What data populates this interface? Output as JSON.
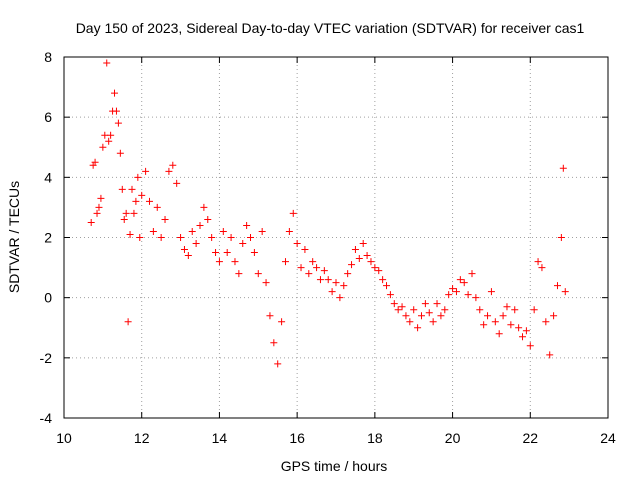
{
  "chart_data": {
    "type": "scatter",
    "title": "Day 150 of 2023, Sidereal Day-to-day VTEC variation (SDTVAR) for receiver cas1",
    "xlabel": "GPS time / hours",
    "ylabel": "SDTVAR / TECUs",
    "xlim": [
      10,
      24
    ],
    "ylim": [
      -4,
      8
    ],
    "x_ticks": [
      10,
      12,
      14,
      16,
      18,
      20,
      22,
      24
    ],
    "y_ticks": [
      -4,
      -2,
      0,
      2,
      4,
      6,
      8
    ],
    "x_tick_labels": [
      "10",
      "12",
      "14",
      "16",
      "18",
      "20",
      "22",
      "24"
    ],
    "y_tick_labels": [
      "-4",
      "-2",
      "0",
      "2",
      "4",
      "6",
      "8"
    ],
    "grid": true,
    "marker": "+",
    "series": [
      {
        "name": "SDTVAR",
        "color": "#ff0000",
        "x": [
          10.7,
          10.75,
          10.8,
          10.85,
          10.9,
          10.95,
          11.0,
          11.05,
          11.1,
          11.15,
          11.2,
          11.25,
          11.3,
          11.35,
          11.4,
          11.45,
          11.5,
          11.55,
          11.6,
          11.65,
          11.7,
          11.75,
          11.8,
          11.85,
          11.9,
          11.95,
          12.0,
          12.1,
          12.2,
          12.3,
          12.4,
          12.5,
          12.6,
          12.7,
          12.8,
          12.9,
          13.0,
          13.1,
          13.2,
          13.3,
          13.4,
          13.5,
          13.6,
          13.7,
          13.8,
          13.9,
          14.0,
          14.1,
          14.2,
          14.3,
          14.4,
          14.5,
          14.6,
          14.7,
          14.8,
          14.9,
          15.0,
          15.1,
          15.2,
          15.3,
          15.4,
          15.5,
          15.6,
          15.7,
          15.8,
          15.9,
          16.0,
          16.1,
          16.2,
          16.3,
          16.4,
          16.5,
          16.6,
          16.7,
          16.8,
          16.9,
          17.0,
          17.1,
          17.2,
          17.3,
          17.4,
          17.5,
          17.6,
          17.7,
          17.8,
          17.9,
          18.0,
          18.1,
          18.2,
          18.3,
          18.4,
          18.5,
          18.6,
          18.7,
          18.8,
          18.9,
          19.0,
          19.1,
          19.2,
          19.3,
          19.4,
          19.5,
          19.6,
          19.7,
          19.8,
          19.9,
          20.0,
          20.1,
          20.2,
          20.3,
          20.4,
          20.5,
          20.6,
          20.7,
          20.8,
          20.9,
          21.0,
          21.1,
          21.2,
          21.3,
          21.4,
          21.5,
          21.6,
          21.7,
          21.8,
          21.9,
          22.0,
          22.1,
          22.2,
          22.3,
          22.4,
          22.5,
          22.6,
          22.7,
          22.8,
          22.85,
          22.9
        ],
        "y": [
          2.5,
          4.4,
          4.5,
          2.8,
          3.0,
          3.3,
          5.0,
          5.4,
          7.8,
          5.2,
          5.4,
          6.2,
          6.8,
          6.2,
          5.8,
          4.8,
          3.6,
          2.6,
          2.8,
          -0.8,
          2.1,
          3.6,
          2.8,
          3.2,
          4.0,
          2.0,
          3.4,
          4.2,
          3.2,
          2.2,
          3.0,
          2.0,
          2.6,
          4.2,
          4.4,
          3.8,
          2.0,
          1.6,
          1.4,
          2.2,
          1.8,
          2.4,
          3.0,
          2.6,
          2.0,
          1.5,
          1.2,
          2.2,
          1.5,
          2.0,
          1.2,
          0.8,
          1.8,
          2.4,
          2.0,
          1.5,
          0.8,
          2.2,
          0.5,
          -0.6,
          -1.5,
          -2.2,
          -0.8,
          1.2,
          2.2,
          2.8,
          1.8,
          1.0,
          1.6,
          0.8,
          1.2,
          1.0,
          0.6,
          0.9,
          0.6,
          0.2,
          0.5,
          0.0,
          0.4,
          0.8,
          1.1,
          1.6,
          1.3,
          1.8,
          1.4,
          1.2,
          1.0,
          0.9,
          0.6,
          0.4,
          0.1,
          -0.2,
          -0.4,
          -0.3,
          -0.6,
          -0.8,
          -0.4,
          -1.0,
          -0.6,
          -0.2,
          -0.5,
          -0.8,
          -0.2,
          -0.6,
          -0.4,
          0.1,
          0.3,
          0.2,
          0.6,
          0.5,
          0.1,
          0.8,
          0.0,
          -0.4,
          -0.9,
          -0.6,
          0.2,
          -0.8,
          -1.2,
          -0.6,
          -0.3,
          -0.9,
          -0.4,
          -1.0,
          -1.3,
          -1.1,
          -1.6,
          -0.4,
          1.2,
          1.0,
          -0.8,
          -1.9,
          -0.6,
          0.4,
          2.0,
          4.3,
          0.2
        ]
      }
    ]
  }
}
